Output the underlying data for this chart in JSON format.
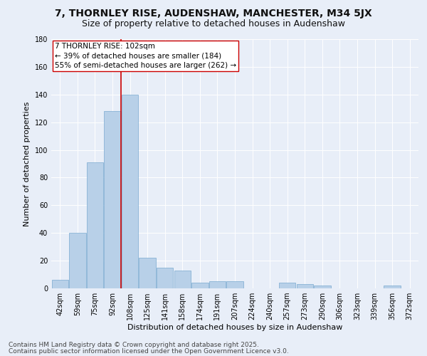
{
  "title1": "7, THORNLEY RISE, AUDENSHAW, MANCHESTER, M34 5JX",
  "title2": "Size of property relative to detached houses in Audenshaw",
  "xlabel": "Distribution of detached houses by size in Audenshaw",
  "ylabel": "Number of detached properties",
  "categories": [
    "42sqm",
    "59sqm",
    "75sqm",
    "92sqm",
    "108sqm",
    "125sqm",
    "141sqm",
    "158sqm",
    "174sqm",
    "191sqm",
    "207sqm",
    "224sqm",
    "240sqm",
    "257sqm",
    "273sqm",
    "290sqm",
    "306sqm",
    "323sqm",
    "339sqm",
    "356sqm",
    "372sqm"
  ],
  "values": [
    6,
    40,
    91,
    128,
    140,
    22,
    15,
    13,
    4,
    5,
    5,
    0,
    0,
    4,
    3,
    2,
    0,
    0,
    0,
    2,
    0
  ],
  "bar_color": "#b8d0e8",
  "bar_edge_color": "#7aaad0",
  "bar_width": 0.95,
  "vline_x": 3.5,
  "vline_color": "#cc0000",
  "annotation_text": "7 THORNLEY RISE: 102sqm\n← 39% of detached houses are smaller (184)\n55% of semi-detached houses are larger (262) →",
  "annotation_box_color": "#ffffff",
  "annotation_box_edge": "#cc0000",
  "ylim": [
    0,
    180
  ],
  "yticks": [
    0,
    20,
    40,
    60,
    80,
    100,
    120,
    140,
    160,
    180
  ],
  "background_color": "#e8eef8",
  "grid_color": "#ffffff",
  "footer1": "Contains HM Land Registry data © Crown copyright and database right 2025.",
  "footer2": "Contains public sector information licensed under the Open Government Licence v3.0.",
  "title1_fontsize": 10,
  "title2_fontsize": 9,
  "axis_label_fontsize": 8,
  "tick_fontsize": 7,
  "annotation_fontsize": 7.5,
  "footer_fontsize": 6.5
}
